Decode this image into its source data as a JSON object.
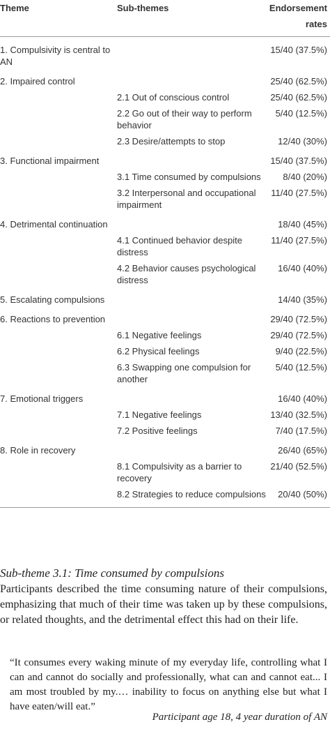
{
  "table": {
    "headers": [
      "Theme",
      "Sub-themes",
      "Endorsement rates"
    ],
    "rows": [
      {
        "theme": "1. Compulsivity is central to AN",
        "rate": "15/40 (37.5%)"
      },
      {
        "theme": "2. Impaired control",
        "rate": "25/40 (62.5%)"
      },
      {
        "subtheme": "2.1 Out of conscious control",
        "rate": "25/40 (62.5%)"
      },
      {
        "subtheme": "2.2 Go out of their way to perform behavior",
        "rate": "5/40 (12.5%)"
      },
      {
        "subtheme": "2.3 Desire/attempts to stop",
        "rate": "12/40 (30%)"
      },
      {
        "theme": "3. Functional impairment",
        "rate": "15/40 (37.5%)"
      },
      {
        "subtheme": "3.1 Time consumed by compulsions",
        "rate": "8/40 (20%)"
      },
      {
        "subtheme": "3.2 Interpersonal and occupational impairment",
        "rate": "11/40 (27.5%)"
      },
      {
        "theme": "4. Detrimental continuation",
        "rate": "18/40 (45%)"
      },
      {
        "subtheme": "4.1 Continued behavior despite distress",
        "rate": "11/40 (27.5%)"
      },
      {
        "subtheme": "4.2 Behavior causes psychological distress",
        "rate": "16/40 (40%)"
      },
      {
        "theme": "5. Escalating compulsions",
        "rate": "14/40 (35%)"
      },
      {
        "theme": "6. Reactions to prevention",
        "rate": "29/40 (72.5%)"
      },
      {
        "subtheme": "6.1 Negative feelings",
        "rate": "29/40 (72.5%)"
      },
      {
        "subtheme": "6.2 Physical feelings",
        "rate": "9/40 (22.5%)"
      },
      {
        "subtheme": "6.3 Swapping one compulsion for another",
        "rate": "5/40 (12.5%)"
      },
      {
        "theme": "7. Emotional triggers",
        "rate": "16/40 (40%)"
      },
      {
        "subtheme": "7.1 Negative feelings",
        "rate": "13/40 (32.5%)"
      },
      {
        "subtheme": "7.2 Positive feelings",
        "rate": "7/40 (17.5%)"
      },
      {
        "theme": "8. Role in recovery",
        "rate": "26/40 (65%)"
      },
      {
        "subtheme": "8.1 Compulsivity as a barrier to recovery",
        "rate": "21/40 (52.5%)"
      },
      {
        "subtheme": "8.2 Strategies to reduce compulsions",
        "rate": "20/40 (50%)"
      }
    ]
  },
  "section": {
    "heading": "Sub-theme 3.1: Time consumed by compulsions",
    "paragraph": "Participants described the time consuming nature of their compulsions, emphasizing that much of their time was taken up by these compulsions, or related thoughts, and the detrimental effect this had on their life.",
    "quote": "“It consumes every waking minute of my everyday life, controlling what I can and cannot do socially and professionally, what can and cannot eat... I am most troubled by my.… inability to focus on anything else but what I have eaten/will eat.”",
    "attribution": "Participant age 18, 4 year duration of AN"
  }
}
